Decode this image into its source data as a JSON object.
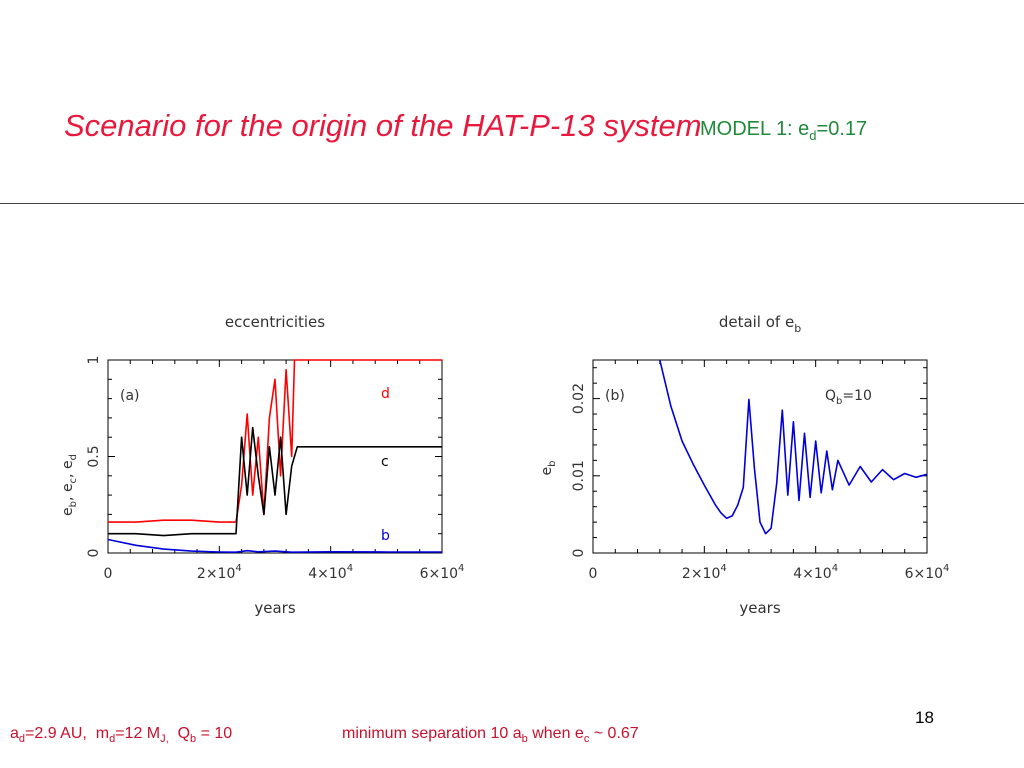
{
  "slide": {
    "title": "Scenario for the origin of the HAT-P-13 system",
    "model_label": {
      "text": "MODEL 1: e",
      "sub": "d",
      "suffix": "=0.17"
    },
    "page_number": "18",
    "footer_params": {
      "a_label": "a",
      "a_sub": "d",
      "a_value": "=2.9 AU,",
      "m_label": "m",
      "m_sub": "d",
      "m_value": "=12 M",
      "m_unit_sub": "J,",
      "q_label": "Q",
      "q_sub": "b",
      "q_value": " = 10"
    },
    "footer_note": {
      "t1": "minimum separation 10 a",
      "s1": "b",
      "t2": " when e",
      "s2": "c",
      "t3": " ~ 0.67"
    },
    "colors": {
      "title": "#e8193c",
      "model": "#1f8a3a",
      "footer": "#c8102e",
      "d": "#ff0000",
      "c": "#000000",
      "b": "#0000dd"
    }
  },
  "chart_data": [
    {
      "type": "line",
      "title": "eccentricities",
      "panel_label": "(a)",
      "xlabel": "years",
      "ylabel": "e_b, e_c, e_d",
      "xlim": [
        0,
        60000
      ],
      "ylim": [
        0,
        1
      ],
      "xticks": [
        0,
        20000,
        40000,
        60000
      ],
      "xtick_labels": [
        {
          "base": "0",
          "exp": ""
        },
        {
          "base": "2×10",
          "exp": "4"
        },
        {
          "base": "4×10",
          "exp": "4"
        },
        {
          "base": "6×10",
          "exp": "4"
        }
      ],
      "yticks": [
        0,
        0.5,
        1
      ],
      "ytick_labels": [
        "0",
        "0.5",
        "1"
      ],
      "reference_line": {
        "y": 1.0,
        "x": [
          0,
          33000
        ],
        "style": "dashed"
      },
      "series": [
        {
          "name": "d",
          "color": "#ff0000",
          "x": [
            0,
            5000,
            10000,
            15000,
            20000,
            23000,
            24000,
            25000,
            26000,
            27000,
            28000,
            29000,
            30000,
            31000,
            32000,
            33000,
            33500,
            40000,
            60000
          ],
          "y": [
            0.16,
            0.16,
            0.17,
            0.17,
            0.16,
            0.16,
            0.35,
            0.72,
            0.3,
            0.6,
            0.2,
            0.7,
            0.9,
            0.4,
            0.95,
            0.5,
            1.0,
            1.0,
            1.0
          ]
        },
        {
          "name": "c",
          "color": "#000000",
          "x": [
            0,
            5000,
            10000,
            15000,
            20000,
            23000,
            24000,
            25000,
            26000,
            27000,
            28000,
            29000,
            30000,
            31000,
            32000,
            33000,
            34000,
            40000,
            60000
          ],
          "y": [
            0.1,
            0.1,
            0.09,
            0.1,
            0.1,
            0.1,
            0.6,
            0.3,
            0.65,
            0.4,
            0.2,
            0.55,
            0.3,
            0.6,
            0.2,
            0.45,
            0.55,
            0.55,
            0.55
          ]
        },
        {
          "name": "b",
          "color": "#0000dd",
          "x": [
            0,
            5000,
            10000,
            15000,
            20000,
            23000,
            25000,
            27000,
            30000,
            33000,
            40000,
            50000,
            60000
          ],
          "y": [
            0.07,
            0.04,
            0.02,
            0.01,
            0.005,
            0.004,
            0.012,
            0.006,
            0.01,
            0.004,
            0.006,
            0.005,
            0.005
          ]
        }
      ]
    },
    {
      "type": "line",
      "title": "detail of e_b",
      "panel_label": "(b)",
      "annotation": "Q_b=10",
      "xlabel": "years",
      "ylabel": "e_b",
      "xlim": [
        0,
        60000
      ],
      "ylim": [
        0,
        0.025
      ],
      "xticks": [
        0,
        20000,
        40000,
        60000
      ],
      "xtick_labels": [
        {
          "base": "0",
          "exp": ""
        },
        {
          "base": "2×10",
          "exp": "4"
        },
        {
          "base": "4×10",
          "exp": "4"
        },
        {
          "base": "6×10",
          "exp": "4"
        }
      ],
      "yticks": [
        0,
        0.01,
        0.02
      ],
      "ytick_labels": [
        "0",
        "0.01",
        "0.02"
      ],
      "series": [
        {
          "name": "b",
          "color": "#0000dd",
          "x": [
            12000,
            14000,
            16000,
            18000,
            20000,
            22000,
            23000,
            24000,
            25000,
            26000,
            27000,
            28000,
            29000,
            30000,
            31000,
            32000,
            33000,
            34000,
            35000,
            36000,
            37000,
            38000,
            39000,
            40000,
            41000,
            42000,
            43000,
            44000,
            46000,
            48000,
            50000,
            52000,
            54000,
            56000,
            58000,
            60000
          ],
          "y": [
            0.025,
            0.019,
            0.0145,
            0.0115,
            0.0088,
            0.0062,
            0.0052,
            0.0045,
            0.0048,
            0.0062,
            0.0085,
            0.0199,
            0.011,
            0.004,
            0.0025,
            0.0032,
            0.009,
            0.0185,
            0.0075,
            0.017,
            0.0068,
            0.0155,
            0.0072,
            0.0145,
            0.0078,
            0.0132,
            0.0082,
            0.012,
            0.0088,
            0.0112,
            0.0092,
            0.0108,
            0.0095,
            0.0103,
            0.0098,
            0.0102
          ]
        }
      ]
    }
  ]
}
